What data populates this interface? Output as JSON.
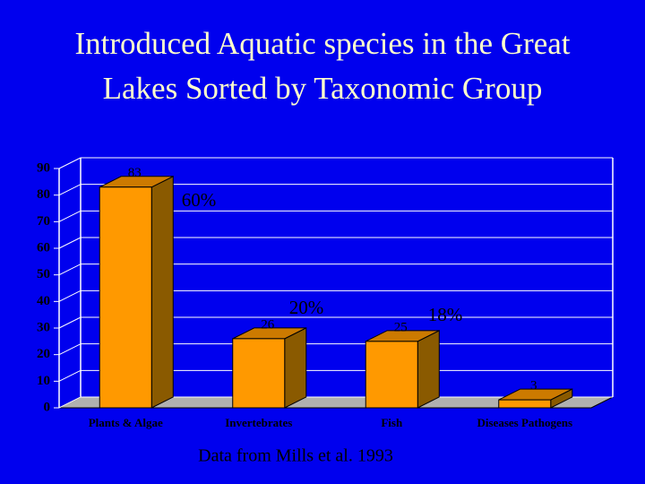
{
  "chart_data": {
    "type": "bar3d",
    "title": "Introduced Aquatic species in the Great Lakes Sorted by Taxonomic Group",
    "categories": [
      "Plants & Algae",
      "Invertebrates",
      "Fish",
      "Diseases Pathogens"
    ],
    "values": [
      83,
      26,
      25,
      3
    ],
    "color": "#ff9900",
    "ylim": [
      0,
      90
    ],
    "yticks": [
      0,
      10,
      20,
      30,
      40,
      50,
      60,
      70,
      80,
      90
    ],
    "grid": true,
    "annotations": [
      "60%",
      "20%",
      "18%"
    ],
    "note": "Data from Mills et al. 1993"
  }
}
